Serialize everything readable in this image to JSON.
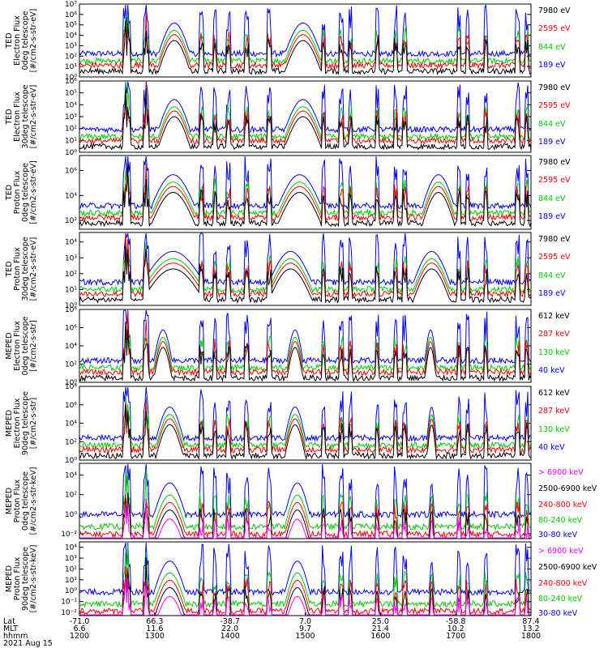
{
  "chart_data": {
    "type": "line",
    "x_ticks": [
      {
        "time": "1200",
        "lat": "-71.0",
        "mlt": "6.6"
      },
      {
        "time": "1300",
        "lat": "66.3",
        "mlt": "11.6"
      },
      {
        "time": "1400",
        "lat": "-38.7",
        "mlt": "22.0"
      },
      {
        "time": "1500",
        "lat": "7.0",
        "mlt": "9.7"
      },
      {
        "time": "1600",
        "lat": "25.0",
        "mlt": "21.4"
      },
      {
        "time": "1700",
        "lat": "-58.8",
        "mlt": "10.2"
      },
      {
        "time": "1800",
        "lat": "87.4",
        "mlt": "13.2"
      }
    ],
    "xlim": [
      "1200",
      "1800"
    ],
    "row_labels": [
      "Lat",
      "MLT",
      "hhmm"
    ],
    "date": "2021 Aug 15",
    "panels": [
      {
        "ylabel": [
          "TED",
          "Electron Flux",
          "0deg telescope",
          "[#/cm2-s-str-eV]"
        ],
        "yticks": [
          "10⁰",
          "10¹",
          "10²",
          "10³",
          "10⁴",
          "10⁵",
          "10⁶",
          "10⁷"
        ],
        "ylim_exp": [
          0,
          7
        ],
        "series": [
          {
            "name": "7980 eV",
            "color": "#000000"
          },
          {
            "name": "2595 eV",
            "color": "#ff0000"
          },
          {
            "name": "844 eV",
            "color": "#00cc00"
          },
          {
            "name": "189 eV",
            "color": "#0000ff"
          }
        ],
        "profile": "ted_e0"
      },
      {
        "ylabel": [
          "TED",
          "Electron Flux",
          "30deg telescope",
          "[#/cm2-s-str-eV]"
        ],
        "yticks": [
          "10⁰",
          "10¹",
          "10²",
          "10³",
          "10⁴",
          "10⁵",
          "10⁶"
        ],
        "ylim_exp": [
          0,
          6
        ],
        "series": [
          {
            "name": "7980 eV",
            "color": "#000000"
          },
          {
            "name": "2595 eV",
            "color": "#ff0000"
          },
          {
            "name": "844 eV",
            "color": "#00cc00"
          },
          {
            "name": "189 eV",
            "color": "#0000ff"
          }
        ],
        "profile": "ted_e30"
      },
      {
        "ylabel": [
          "TED",
          "Proton Flux",
          "0deg telescope",
          "[#/cm2-s-str-eV]"
        ],
        "yticks": [
          "10²",
          "10⁴",
          "10⁶"
        ],
        "ylim_exp": [
          1.3,
          7.2
        ],
        "series": [
          {
            "name": "7980 eV",
            "color": "#000000"
          },
          {
            "name": "2595 eV",
            "color": "#ff0000"
          },
          {
            "name": "844 eV",
            "color": "#00cc00"
          },
          {
            "name": "189 eV",
            "color": "#0000ff"
          }
        ],
        "profile": "ted_p0"
      },
      {
        "ylabel": [
          "TED",
          "Proton Flux",
          "30deg telescope",
          "[#/cm2-s-str-eV]"
        ],
        "yticks": [
          "10⁰",
          "10¹",
          "10²",
          "10³",
          "10⁴"
        ],
        "ylim_exp": [
          0,
          4.6
        ],
        "series": [
          {
            "name": "7980 eV",
            "color": "#000000"
          },
          {
            "name": "2595 eV",
            "color": "#ff0000"
          },
          {
            "name": "844 eV",
            "color": "#00cc00"
          },
          {
            "name": "189 eV",
            "color": "#0000ff"
          }
        ],
        "profile": "ted_p30"
      },
      {
        "ylabel": [
          "MEPED",
          "Electron Flux",
          "0deg telescope",
          "[#/cm2-s-str]"
        ],
        "yticks": [
          "10⁰",
          "10²",
          "10⁴",
          "10⁶",
          "10⁸"
        ],
        "ylim_exp": [
          0,
          8
        ],
        "series": [
          {
            "name": "612 keV",
            "color": "#000000"
          },
          {
            "name": "287 keV",
            "color": "#ff0000"
          },
          {
            "name": "130 keV",
            "color": "#00cc00"
          },
          {
            "name": "40 keV",
            "color": "#0000ff"
          }
        ],
        "profile": "mep_e0"
      },
      {
        "ylabel": [
          "MEPED",
          "Electron Flux",
          "90deg telescope",
          "[#/cm2-s-str]"
        ],
        "yticks": [
          "10⁰",
          "10²",
          "10⁴",
          "10⁶",
          "10⁸"
        ],
        "ylim_exp": [
          0,
          8
        ],
        "series": [
          {
            "name": "612 keV",
            "color": "#000000"
          },
          {
            "name": "287 keV",
            "color": "#ff0000"
          },
          {
            "name": "130 keV",
            "color": "#00cc00"
          },
          {
            "name": "40 keV",
            "color": "#0000ff"
          }
        ],
        "profile": "mep_e90"
      },
      {
        "ylabel": [
          "MEPED",
          "Proton Flux",
          "0deg telescope",
          "[#/cm2-s-str-keV]"
        ],
        "yticks": [
          "10⁻²",
          "10⁰",
          "10²",
          "10⁴"
        ],
        "ylim_exp": [
          -2.5,
          5.2
        ],
        "series": [
          {
            "name": "> 6900 keV",
            "color": "#ff00ff"
          },
          {
            "name": "2500-6900 keV",
            "color": "#000000"
          },
          {
            "name": "240-800 keV",
            "color": "#ff0000"
          },
          {
            "name": "80-240 keV",
            "color": "#00cc00"
          },
          {
            "name": "30-80 keV",
            "color": "#0000ff"
          }
        ],
        "profile": "mep_p0"
      },
      {
        "ylabel": [
          "MEPED",
          "Proton Flux",
          "90deg telescope",
          "[#/cm2-s-str-keV]"
        ],
        "yticks": [
          "10⁻²",
          "10⁻¹",
          "10⁰",
          "10¹",
          "10²",
          "10³",
          "10⁴"
        ],
        "ylim_exp": [
          -2.3,
          4.5
        ],
        "series": [
          {
            "name": "> 6900 keV",
            "color": "#ff00ff"
          },
          {
            "name": "2500-6900 keV",
            "color": "#000000"
          },
          {
            "name": "240-800 keV",
            "color": "#ff0000"
          },
          {
            "name": "80-240 keV",
            "color": "#00cc00"
          },
          {
            "name": "30-80 keV",
            "color": "#0000ff"
          }
        ],
        "profile": "mep_p90"
      }
    ]
  }
}
